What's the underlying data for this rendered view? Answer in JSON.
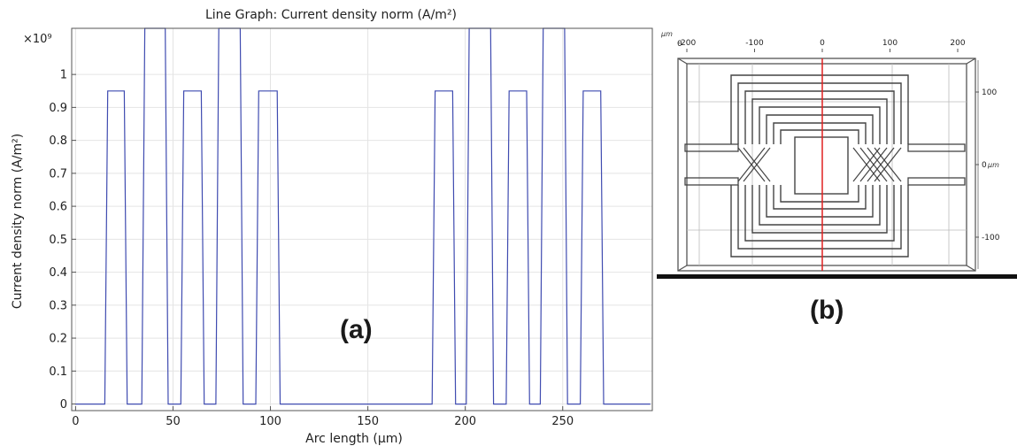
{
  "chart_data": [
    {
      "type": "line",
      "title": "Line Graph: Current density norm (A/m²)",
      "xlabel": "Arc length (µm)",
      "ylabel": "Current density norm (A/m²)",
      "y_multiplier": "×10⁹",
      "xlim": [
        -2,
        296
      ],
      "ylim": [
        -0.02,
        1.14
      ],
      "grid": true,
      "x_ticks": [
        0,
        50,
        100,
        150,
        200,
        250
      ],
      "y_ticks": [
        0,
        0.1,
        0.2,
        0.3,
        0.4,
        0.5,
        0.6,
        0.7,
        0.8,
        0.9,
        1
      ],
      "series": [
        {
          "color": "#3f4bb0",
          "x": [
            0,
            15,
            16.5,
            25,
            26.5,
            34,
            35.5,
            46,
            47.5,
            54,
            55.5,
            64.5,
            66,
            72,
            73.5,
            84.5,
            86,
            92.5,
            94,
            103.5,
            105,
            183,
            184.5,
            193.5,
            195,
            200.5,
            202,
            213,
            214.5,
            221,
            222.5,
            231.5,
            233,
            238.5,
            240,
            251,
            252.5,
            259,
            260.5,
            269.5,
            271,
            295
          ],
          "y": [
            0,
            0,
            0.95,
            0.95,
            0,
            0,
            1.14,
            1.14,
            0,
            0,
            0.95,
            0.95,
            0,
            0,
            1.14,
            1.14,
            0,
            0,
            0.95,
            0.95,
            0,
            0,
            0.95,
            0.95,
            0,
            0,
            1.14,
            1.14,
            0,
            0,
            0.95,
            0.95,
            0,
            0,
            1.14,
            1.14,
            0,
            0,
            0.95,
            0.95,
            0,
            0
          ]
        }
      ]
    },
    {
      "type": "diagram",
      "unit": "µm",
      "x_ticks": [
        -200,
        -100,
        0,
        100,
        200
      ],
      "y_ticks": [
        100,
        0,
        -100
      ],
      "x_origin_label": "0",
      "cut_line_color": "#e02020"
    }
  ],
  "panel_labels": {
    "a": "(a)",
    "b": "(b)"
  }
}
